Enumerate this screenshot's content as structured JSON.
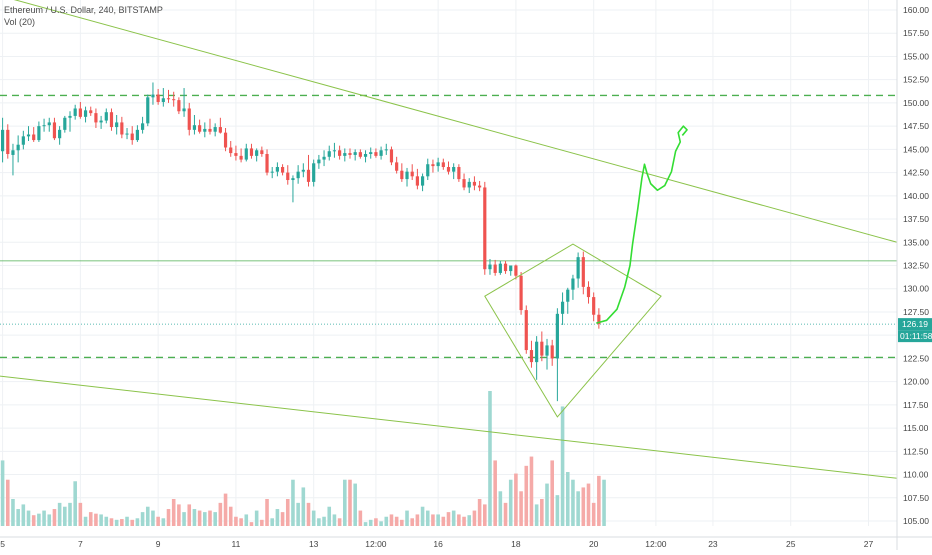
{
  "legend": {
    "symbol": "Ethereum / U.S. Dollar, 240, BITSTAMP",
    "volume": "Vol (20)"
  },
  "colors": {
    "up": "#26a69a",
    "down": "#ef5350",
    "up_volume": "#9fd8d1",
    "down_volume": "#f5aaa8",
    "trendline": "#8bc34a",
    "dashed_level": "#4caf50",
    "projection": "#33dd33",
    "last_price": "#26a69a",
    "grid": "#eef1f4",
    "axis_text": "#444444"
  },
  "chart_data": {
    "type": "candlestick",
    "title": "Ethereum / U.S. Dollar, 240, BITSTAMP",
    "ylim": [
      103.5,
      161
    ],
    "y_ticks": [
      "105.00",
      "107.50",
      "110.00",
      "112.50",
      "115.00",
      "117.50",
      "120.00",
      "122.50",
      "125.00",
      "127.50",
      "130.00",
      "132.50",
      "135.00",
      "137.50",
      "140.00",
      "142.50",
      "145.00",
      "147.50",
      "150.00",
      "152.50",
      "155.00",
      "157.50",
      "160.00"
    ],
    "x_ticks": [
      "5",
      "7",
      "9",
      "11",
      "13",
      "12:00",
      "16",
      "18",
      "20",
      "12:00",
      "23",
      "25",
      "27"
    ],
    "x_tick_bars": [
      0.5,
      15.5,
      30.5,
      45.5,
      60.5,
      72.5,
      84.5,
      99.5,
      114.5,
      126.5,
      137.5,
      152.5,
      167.5
    ],
    "x_range_bars": [
      0,
      173
    ],
    "last_price_label": "126.19",
    "countdown_label": "01:11:58",
    "last_price": 126.19,
    "candles": [
      [
        144.8,
        148.4,
        143.6,
        147.1
      ],
      [
        147.1,
        147.7,
        144.0,
        144.5
      ],
      [
        144.4,
        145.6,
        142.2,
        144.9
      ],
      [
        144.9,
        146.5,
        143.6,
        145.5
      ],
      [
        145.5,
        147.0,
        145.0,
        146.4
      ],
      [
        146.4,
        147.5,
        145.9,
        146.6
      ],
      [
        146.6,
        147.4,
        145.8,
        146.0
      ],
      [
        146.0,
        148.0,
        145.8,
        147.5
      ],
      [
        147.5,
        148.3,
        146.9,
        147.6
      ],
      [
        147.6,
        148.4,
        146.9,
        147.9
      ],
      [
        147.9,
        148.4,
        146.0,
        146.2
      ],
      [
        146.2,
        147.5,
        145.5,
        147.1
      ],
      [
        147.1,
        148.6,
        146.8,
        148.4
      ],
      [
        148.4,
        149.1,
        146.9,
        148.6
      ],
      [
        148.6,
        149.8,
        148.2,
        149.4
      ],
      [
        149.4,
        150.1,
        148.3,
        148.5
      ],
      [
        148.5,
        149.6,
        147.9,
        149.2
      ],
      [
        149.2,
        149.6,
        148.6,
        148.9
      ],
      [
        148.9,
        149.4,
        147.3,
        147.9
      ],
      [
        147.9,
        148.6,
        147.2,
        148.1
      ],
      [
        148.1,
        149.4,
        147.8,
        149.0
      ],
      [
        149.0,
        149.4,
        147.0,
        147.4
      ],
      [
        147.4,
        148.7,
        146.6,
        147.9
      ],
      [
        147.9,
        148.5,
        146.2,
        146.6
      ],
      [
        146.6,
        147.3,
        146.1,
        146.7
      ],
      [
        146.7,
        147.5,
        145.5,
        146.0
      ],
      [
        146.0,
        147.6,
        145.8,
        147.1
      ],
      [
        147.1,
        148.5,
        146.7,
        147.8
      ],
      [
        147.8,
        150.9,
        147.5,
        150.6
      ],
      [
        150.6,
        152.2,
        149.8,
        150.9
      ],
      [
        150.9,
        151.5,
        149.8,
        150.1
      ],
      [
        150.1,
        151.6,
        149.6,
        150.5
      ],
      [
        150.5,
        151.4,
        150.0,
        150.4
      ],
      [
        150.4,
        151.2,
        149.6,
        150.3
      ],
      [
        150.3,
        150.6,
        148.8,
        149.1
      ],
      [
        149.1,
        151.6,
        148.5,
        149.4
      ],
      [
        149.4,
        150.0,
        146.5,
        147.1
      ],
      [
        147.1,
        148.7,
        146.6,
        147.6
      ],
      [
        147.6,
        148.2,
        146.7,
        146.9
      ],
      [
        146.9,
        147.9,
        146.3,
        147.2
      ],
      [
        147.2,
        148.3,
        146.6,
        146.9
      ],
      [
        146.9,
        147.8,
        146.4,
        147.4
      ],
      [
        147.4,
        148.4,
        146.7,
        146.8
      ],
      [
        146.8,
        147.3,
        144.8,
        145.2
      ],
      [
        145.2,
        145.9,
        144.2,
        144.6
      ],
      [
        144.6,
        145.4,
        143.8,
        144.3
      ],
      [
        144.3,
        145.1,
        143.6,
        143.9
      ],
      [
        143.9,
        145.6,
        143.7,
        145.1
      ],
      [
        145.1,
        145.6,
        144.0,
        144.3
      ],
      [
        144.3,
        145.1,
        143.7,
        144.9
      ],
      [
        144.9,
        145.3,
        144.2,
        144.5
      ],
      [
        144.5,
        145.0,
        142.2,
        142.5
      ],
      [
        142.5,
        143.1,
        141.9,
        142.6
      ],
      [
        142.6,
        143.6,
        142.1,
        143.1
      ],
      [
        143.1,
        143.4,
        142.2,
        142.5
      ],
      [
        142.5,
        143.3,
        141.2,
        141.7
      ],
      [
        141.7,
        142.2,
        139.3,
        141.9
      ],
      [
        141.9,
        143.3,
        141.3,
        142.6
      ],
      [
        142.6,
        143.5,
        142.0,
        142.8
      ],
      [
        142.8,
        144.4,
        141.0,
        141.5
      ],
      [
        141.5,
        143.9,
        141.0,
        143.5
      ],
      [
        143.5,
        144.4,
        142.9,
        143.9
      ],
      [
        143.9,
        144.9,
        143.2,
        144.2
      ],
      [
        144.2,
        145.4,
        143.8,
        144.8
      ],
      [
        144.8,
        145.7,
        144.1,
        144.9
      ],
      [
        144.9,
        145.4,
        143.9,
        144.3
      ],
      [
        144.3,
        145.1,
        143.7,
        144.6
      ],
      [
        144.6,
        145.1,
        144.0,
        144.4
      ],
      [
        144.4,
        145.0,
        143.8,
        144.7
      ],
      [
        144.7,
        145.0,
        144.0,
        144.2
      ],
      [
        144.2,
        144.9,
        143.6,
        144.5
      ],
      [
        144.5,
        145.2,
        144.0,
        144.7
      ],
      [
        144.7,
        145.1,
        144.1,
        144.3
      ],
      [
        144.3,
        145.3,
        143.9,
        144.9
      ],
      [
        144.9,
        145.6,
        144.4,
        145.0
      ],
      [
        145.0,
        145.3,
        143.3,
        143.6
      ],
      [
        143.6,
        144.2,
        142.4,
        142.7
      ],
      [
        142.7,
        143.5,
        141.5,
        141.8
      ],
      [
        141.8,
        143.0,
        141.0,
        142.6
      ],
      [
        142.6,
        143.4,
        141.7,
        142.1
      ],
      [
        142.1,
        142.9,
        140.7,
        141.1
      ],
      [
        141.1,
        142.4,
        140.5,
        142.1
      ],
      [
        142.1,
        144.0,
        141.7,
        143.4
      ],
      [
        143.4,
        143.9,
        142.5,
        143.2
      ],
      [
        143.2,
        144.1,
        142.6,
        143.6
      ],
      [
        143.6,
        144.0,
        142.8,
        143.1
      ],
      [
        143.1,
        143.7,
        142.3,
        142.6
      ],
      [
        142.6,
        143.5,
        141.8,
        143.1
      ],
      [
        143.1,
        143.4,
        141.5,
        141.8
      ],
      [
        141.8,
        142.4,
        140.6,
        140.9
      ],
      [
        140.9,
        141.9,
        140.3,
        141.5
      ],
      [
        141.5,
        142.1,
        140.6,
        141.1
      ],
      [
        141.1,
        141.6,
        140.5,
        140.9
      ],
      [
        140.9,
        141.5,
        131.5,
        132.1
      ],
      [
        132.1,
        133.2,
        131.5,
        132.6
      ],
      [
        132.6,
        133.1,
        131.4,
        131.7
      ],
      [
        131.7,
        133.0,
        131.5,
        132.7
      ],
      [
        132.7,
        133.0,
        131.6,
        131.9
      ],
      [
        131.9,
        132.5,
        131.4,
        132.5
      ],
      [
        132.5,
        132.6,
        131.0,
        131.4
      ],
      [
        131.4,
        131.8,
        127.2,
        127.7
      ],
      [
        127.7,
        128.2,
        123.0,
        123.4
      ],
      [
        123.4,
        124.4,
        121.5,
        122.1
      ],
      [
        122.1,
        124.9,
        120.2,
        124.3
      ],
      [
        124.3,
        125.4,
        122.2,
        122.8
      ],
      [
        122.8,
        124.6,
        121.3,
        123.9
      ],
      [
        123.9,
        124.5,
        121.7,
        122.5
      ],
      [
        122.5,
        127.9,
        117.9,
        127.3
      ],
      [
        127.3,
        129.6,
        126.1,
        128.6
      ],
      [
        128.6,
        130.1,
        127.3,
        129.9
      ],
      [
        129.9,
        131.5,
        128.8,
        131.1
      ],
      [
        131.1,
        133.9,
        130.1,
        133.4
      ],
      [
        133.4,
        134.0,
        129.4,
        130.2
      ],
      [
        130.2,
        130.8,
        128.4,
        129.1
      ],
      [
        129.1,
        129.6,
        126.5,
        127.2
      ],
      [
        127.2,
        127.9,
        125.7,
        126.19
      ]
    ],
    "volumes": [
      0.85,
      0.6,
      0.35,
      0.22,
      0.28,
      0.2,
      0.14,
      0.16,
      0.2,
      0.15,
      0.22,
      0.3,
      0.25,
      0.3,
      0.58,
      0.3,
      0.12,
      0.18,
      0.16,
      0.15,
      0.12,
      0.1,
      0.08,
      0.09,
      0.12,
      0.08,
      0.1,
      0.18,
      0.25,
      0.2,
      0.12,
      0.1,
      0.22,
      0.35,
      0.28,
      0.18,
      0.28,
      0.22,
      0.2,
      0.18,
      0.2,
      0.18,
      0.3,
      0.42,
      0.25,
      0.12,
      0.1,
      0.15,
      0.05,
      0.2,
      0.08,
      0.35,
      0.1,
      0.22,
      0.18,
      0.35,
      0.6,
      0.3,
      0.5,
      0.3,
      0.2,
      0.1,
      0.12,
      0.25,
      0.15,
      0.1,
      0.6,
      0.6,
      0.55,
      0.2,
      0.05,
      0.08,
      0.1,
      0.06,
      0.12,
      0.15,
      0.12,
      0.08,
      0.2,
      0.1,
      0.15,
      0.25,
      0.2,
      0.15,
      0.15,
      0.12,
      0.18,
      0.2,
      0.15,
      0.12,
      0.14,
      0.2,
      0.35,
      0.28,
      1.75,
      0.85,
      0.45,
      0.3,
      0.6,
      0.68,
      0.45,
      0.78,
      0.9,
      0.28,
      0.35,
      0.55,
      0.85,
      0.4,
      1.55,
      0.7,
      0.6,
      0.45,
      0.5,
      0.55,
      0.3,
      0.65,
      0.6
    ],
    "lines": [
      {
        "kind": "trendline",
        "points": [
          [
            -3,
            162
          ],
          [
            173,
            135.0
          ]
        ]
      },
      {
        "kind": "trendline",
        "points": [
          [
            0,
            120.6
          ],
          [
            173,
            109.6
          ]
        ]
      },
      {
        "kind": "horizontal-dashed",
        "price": 150.8
      },
      {
        "kind": "horizontal-dashed",
        "price": 122.6
      },
      {
        "kind": "horizontal-thin",
        "price": 133.0
      },
      {
        "kind": "diamond",
        "points": [
          [
            93.5,
            129.2
          ],
          [
            110.5,
            134.8
          ],
          [
            127.5,
            129.2
          ],
          [
            107.5,
            116.2
          ]
        ]
      },
      {
        "kind": "projection",
        "points": [
          [
            115,
            126.3
          ],
          [
            117,
            126.6
          ],
          [
            119,
            127.8
          ],
          [
            120.5,
            130.2
          ],
          [
            121.5,
            132.5
          ],
          [
            122,
            134.8
          ],
          [
            123,
            138.6
          ],
          [
            123.8,
            141.9
          ],
          [
            124.3,
            143.4
          ],
          [
            124.8,
            142.4
          ],
          [
            125.5,
            141.3
          ],
          [
            126.8,
            140.6
          ],
          [
            128.2,
            141.1
          ],
          [
            129.5,
            142.6
          ],
          [
            130.3,
            144.8
          ],
          [
            131.2,
            145.8
          ],
          [
            130.8,
            146.8
          ],
          [
            131.8,
            147.5
          ],
          [
            132.5,
            147.1
          ],
          [
            131.6,
            146.5
          ]
        ]
      }
    ]
  }
}
